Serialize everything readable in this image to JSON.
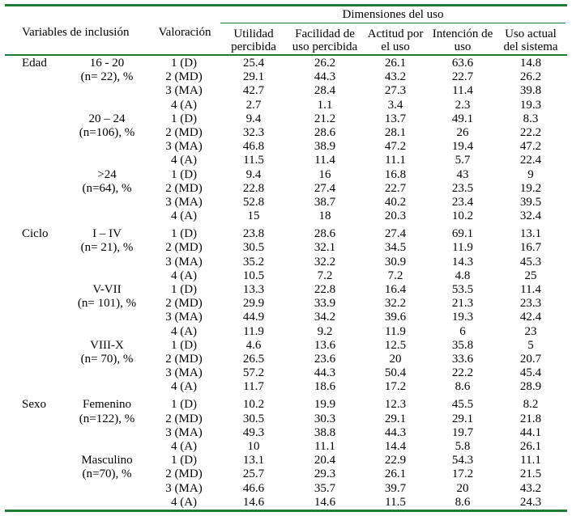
{
  "style": {
    "rule_color": "#1f7a35",
    "text_color": "#000000"
  },
  "header": {
    "group_title": "Dimensiones del uso",
    "variables": "Variables de inclusión",
    "valoracion": "Valoración",
    "columns": [
      {
        "line1": "Utilidad",
        "line2": "percibida"
      },
      {
        "line1": "Facilidad de",
        "line2": "uso percibida"
      },
      {
        "line1": "Actitud por",
        "line2": "el uso"
      },
      {
        "line1": "Intención de",
        "line2": "uso"
      },
      {
        "line1": "Uso actual",
        "line2": "del sistema"
      }
    ]
  },
  "groups": [
    {
      "label": "Edad",
      "subgroups": [
        {
          "label": "16 - 20",
          "n": "(n= 22), %",
          "rows": [
            {
              "rating": "1 (D)",
              "values": [
                "25.4",
                "26.2",
                "26.1",
                "63.6",
                "14.8"
              ]
            },
            {
              "rating": "2 (MD)",
              "values": [
                "29.1",
                "44.3",
                "43.2",
                "22.7",
                "26.2"
              ]
            },
            {
              "rating": "3 (MA)",
              "values": [
                "42.7",
                "28.4",
                "27.3",
                "11.4",
                "39.8"
              ]
            },
            {
              "rating": "4 (A)",
              "values": [
                "2.7",
                "1.1",
                "3.4",
                "2.3",
                "19.3"
              ]
            }
          ]
        },
        {
          "label": "20 – 24",
          "n": "(n=106), %",
          "rows": [
            {
              "rating": "1 (D)",
              "values": [
                "9.4",
                "21.2",
                "13.7",
                "49.1",
                "8.3"
              ]
            },
            {
              "rating": "2 (MD)",
              "values": [
                "32.3",
                "28.6",
                "28.1",
                "26",
                "22.2"
              ]
            },
            {
              "rating": "3 (MA)",
              "values": [
                "46.8",
                "38.9",
                "47.2",
                "19.4",
                "47.2"
              ]
            },
            {
              "rating": "4 (A)",
              "values": [
                "11.5",
                "11.4",
                "11.1",
                "5.7",
                "22.4"
              ]
            }
          ]
        },
        {
          "label": ">24",
          "n": "(n=64), %",
          "rows": [
            {
              "rating": "1 (D)",
              "values": [
                "9.4",
                "16",
                "16.8",
                "43",
                "9"
              ]
            },
            {
              "rating": "2 (MD)",
              "values": [
                "22.8",
                "27.4",
                "22.7",
                "23.5",
                "19.2"
              ]
            },
            {
              "rating": "3 (MA)",
              "values": [
                "52.8",
                "38.7",
                "40.2",
                "23.4",
                "39.5"
              ]
            },
            {
              "rating": "4 (A)",
              "values": [
                "15",
                "18",
                "20.3",
                "10.2",
                "32.4"
              ]
            }
          ]
        }
      ]
    },
    {
      "label": "Ciclo",
      "subgroups": [
        {
          "label": "I – IV",
          "n": "(n= 21), %",
          "rows": [
            {
              "rating": "1 (D)",
              "values": [
                "23.8",
                "28.6",
                "27.4",
                "69.1",
                "13.1"
              ]
            },
            {
              "rating": "2 (MD)",
              "values": [
                "30.5",
                "32.1",
                "34.5",
                "11.9",
                "16.7"
              ]
            },
            {
              "rating": "3 (MA)",
              "values": [
                "35.2",
                "32.2",
                "30.9",
                "14.3",
                "45.3"
              ]
            },
            {
              "rating": "4 (A)",
              "values": [
                "10.5",
                "7.2",
                "7.2",
                "4.8",
                "25"
              ]
            }
          ]
        },
        {
          "label": "V-VII",
          "n": "(n= 101), %",
          "rows": [
            {
              "rating": "1 (D)",
              "values": [
                "13.3",
                "22.8",
                "16.4",
                "53.5",
                "11.4"
              ]
            },
            {
              "rating": "2 (MD)",
              "values": [
                "29.9",
                "33.9",
                "32.2",
                "21.3",
                "23.3"
              ]
            },
            {
              "rating": "3 (MA)",
              "values": [
                "44.9",
                "34.2",
                "39.6",
                "19.3",
                "42.4"
              ]
            },
            {
              "rating": "4 (A)",
              "values": [
                "11.9",
                "9.2",
                "11.9",
                "6",
                "23"
              ]
            }
          ]
        },
        {
          "label": "VIII-X",
          "n": "(n= 70), %",
          "rows": [
            {
              "rating": "1 (D)",
              "values": [
                "4.6",
                "13.6",
                "12.5",
                "35.8",
                "5"
              ]
            },
            {
              "rating": "2 (MD)",
              "values": [
                "26.5",
                "23.6",
                "20",
                "33.6",
                "20.7"
              ]
            },
            {
              "rating": "3 (MA)",
              "values": [
                "57.2",
                "44.3",
                "50.4",
                "22.2",
                "45.4"
              ]
            },
            {
              "rating": "4 (A)",
              "values": [
                "11.7",
                "18.6",
                "17.2",
                "8.6",
                "28.9"
              ]
            }
          ]
        }
      ]
    },
    {
      "label": "Sexo",
      "subgroups": [
        {
          "label": "Femenino",
          "n": "(n=122), %",
          "rows": [
            {
              "rating": "1 (D)",
              "values": [
                "10.2",
                "19.9",
                "12.3",
                "45.5",
                "8.2"
              ]
            },
            {
              "rating": "2 (MD)",
              "values": [
                "30.5",
                "30.3",
                "29.1",
                "29.1",
                "21.8"
              ]
            },
            {
              "rating": "3 (MA)",
              "values": [
                "49.3",
                "38.8",
                "44.3",
                "19.7",
                "44.1"
              ]
            },
            {
              "rating": "4 (A)",
              "values": [
                "10",
                "11.1",
                "14.4",
                "5.8",
                "26.1"
              ]
            }
          ]
        },
        {
          "label": "Masculino",
          "n": "(n=70), %",
          "rows": [
            {
              "rating": "1 (D)",
              "values": [
                "13.1",
                "20.4",
                "22.9",
                "54.3",
                "11.1"
              ]
            },
            {
              "rating": "2 (MD)",
              "values": [
                "25.7",
                "29.3",
                "26.1",
                "17.2",
                "21.5"
              ]
            },
            {
              "rating": "3 (MA)",
              "values": [
                "46.6",
                "35.7",
                "39.7",
                "20",
                "43.2"
              ]
            },
            {
              "rating": "4 (A)",
              "values": [
                "14.6",
                "14.6",
                "11.5",
                "8.6",
                "24.3"
              ]
            }
          ]
        }
      ]
    }
  ]
}
